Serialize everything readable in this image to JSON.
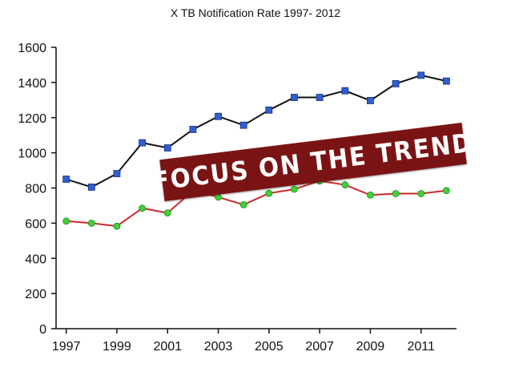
{
  "chart_data": {
    "type": "line",
    "title": "X TB Notification Rate  1997- 2012",
    "xlabel": "",
    "ylabel": "",
    "x": [
      1997,
      1998,
      1999,
      2000,
      2001,
      2002,
      2003,
      2004,
      2005,
      2006,
      2007,
      2008,
      2009,
      2010,
      2011,
      2012
    ],
    "xticks": [
      "1997",
      "1999",
      "2001",
      "2003",
      "2005",
      "2007",
      "2009",
      "2011"
    ],
    "yticks": [
      "0",
      "200",
      "400",
      "600",
      "800",
      "1000",
      "1200",
      "1400",
      "1600"
    ],
    "ylim": [
      0,
      1600
    ],
    "xlim": [
      1996.6,
      2012.4
    ],
    "grid": false,
    "legend": "none",
    "series": [
      {
        "values": [
          850,
          805,
          882,
          1057,
          1028,
          1133,
          1207,
          1157,
          1243,
          1315,
          1315,
          1353,
          1297,
          1393,
          1441,
          1408
        ],
        "line_color": "#111111",
        "marker_color": "#2f5fd0",
        "marker": "square"
      },
      {
        "values": [
          612,
          600,
          583,
          685,
          658,
          785,
          748,
          705,
          770,
          793,
          840,
          818,
          760,
          768,
          768,
          785
        ],
        "line_color": "#cc2a2a",
        "marker_color": "#3fd23a",
        "marker": "circle"
      }
    ],
    "annotations": [
      {
        "text": "FOCUS ON THE TREND",
        "background": "#7a1414",
        "color": "#ffffff"
      }
    ]
  }
}
